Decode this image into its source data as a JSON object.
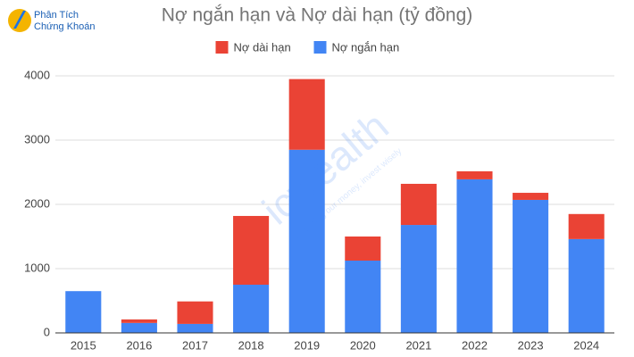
{
  "logo": {
    "line1": "Phân Tích",
    "line2": "Chứng Khoán"
  },
  "watermark": {
    "brand": "icwealth",
    "slogan": "Mastering our money, invest wisely"
  },
  "chart_data": {
    "type": "bar",
    "stacked": true,
    "title": "Nợ ngắn hạn và Nợ dài hạn (tỷ đồng)",
    "categories": [
      "2015",
      "2016",
      "2017",
      "2018",
      "2019",
      "2020",
      "2021",
      "2022",
      "2023",
      "2024"
    ],
    "series": [
      {
        "name": "Nợ dài hạn",
        "color": "#ea4335",
        "values": [
          0,
          55,
          350,
          1070,
          1100,
          375,
          640,
          125,
          110,
          390
        ]
      },
      {
        "name": "Nợ ngắn hạn",
        "color": "#4285f4",
        "values": [
          650,
          155,
          140,
          750,
          2850,
          1125,
          1680,
          2390,
          2070,
          1460
        ]
      }
    ],
    "ylim": [
      0,
      4000
    ],
    "yticks": [
      0,
      1000,
      2000,
      3000,
      4000
    ],
    "grid": true,
    "legend": "top"
  }
}
